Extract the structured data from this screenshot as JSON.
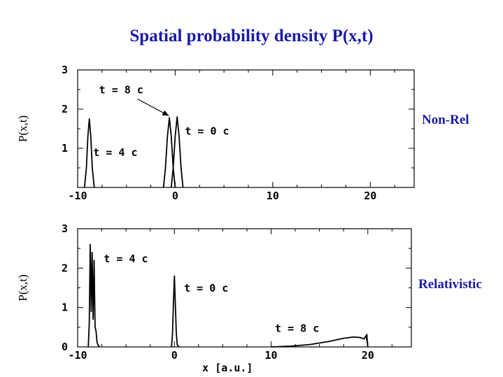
{
  "title": "Spatial probability density P(x,t)",
  "side_labels": {
    "top": "Non-Rel",
    "bottom": "Relativistic"
  },
  "colors": {
    "title": "#1a1aa6",
    "curves": "#000000",
    "axes": "#000000"
  },
  "chart_data": [
    {
      "type": "line",
      "name": "Non-Rel",
      "ylabel": "P(x,t)",
      "xlim": [
        -10,
        24.5
      ],
      "ylim": [
        0,
        3
      ],
      "x_ticks": [
        -10,
        0,
        10,
        20
      ],
      "x_tick_labels": [
        "-10",
        "0",
        "10",
        "20"
      ],
      "y_ticks": [
        1,
        2,
        3
      ],
      "y_tick_labels": [
        "1",
        "2",
        "3"
      ],
      "series": [
        {
          "x": [
            -9.3,
            -9.1,
            -8.95,
            -8.8,
            -8.65,
            -8.5,
            -8.3
          ],
          "y": [
            0,
            0.5,
            1.3,
            1.75,
            1.3,
            0.5,
            0
          ]
        },
        {
          "x": [
            -1.2,
            -1.0,
            -0.8,
            -0.6,
            -0.4,
            -0.2,
            0.0
          ],
          "y": [
            0,
            0.5,
            1.3,
            1.78,
            1.3,
            0.5,
            0
          ]
        },
        {
          "x": [
            -0.4,
            -0.2,
            0.0,
            0.2,
            0.4,
            0.6,
            0.8
          ],
          "y": [
            0,
            0.5,
            1.3,
            1.8,
            1.3,
            0.5,
            0
          ]
        }
      ],
      "annotations": [
        {
          "text": "t = 8 c",
          "x": -7.8,
          "y": 2.4
        },
        {
          "text": "t = 0 c",
          "x": 1.0,
          "y": 1.35
        },
        {
          "text": "t = 4 c",
          "x": -8.4,
          "y": 0.8
        }
      ]
    },
    {
      "type": "line",
      "name": "Relativistic",
      "ylabel": "P(x,t)",
      "xlabel": "x  [a.u.]",
      "xlim": [
        -10,
        24.5
      ],
      "ylim": [
        0,
        3
      ],
      "x_ticks": [
        -10,
        0,
        10,
        20
      ],
      "x_tick_labels": [
        "-10",
        "0",
        "10",
        "20"
      ],
      "y_ticks": [
        0,
        1,
        2,
        3
      ],
      "y_tick_labels": [
        "0",
        "1",
        "2",
        "3"
      ],
      "series": [
        {
          "x": [
            -8.9,
            -8.8,
            -8.7,
            -8.6,
            -8.5,
            -8.4,
            -8.3,
            -8.2,
            -8.1,
            -8.0,
            -7.9,
            -7.75
          ],
          "y": [
            0,
            0.6,
            2.6,
            0.9,
            2.4,
            0.7,
            2.2,
            0.5,
            0.4,
            0.12,
            0.05,
            0
          ]
        },
        {
          "x": [
            -0.3,
            -0.2,
            -0.1,
            0.0,
            0.1,
            0.2,
            0.3,
            0.5
          ],
          "y": [
            0,
            0.3,
            1.1,
            1.8,
            1.1,
            0.35,
            0.05,
            0
          ]
        },
        {
          "x": [
            10.0,
            12.0,
            14.0,
            16.0,
            17.5,
            18.5,
            19.2,
            19.6,
            19.8,
            19.9,
            19.9,
            19.95,
            20.0
          ],
          "y": [
            0.0,
            0.02,
            0.06,
            0.14,
            0.22,
            0.25,
            0.24,
            0.2,
            0.28,
            0.16,
            0.32,
            0.1,
            0.0
          ]
        }
      ],
      "annotations": [
        {
          "text": "t = 4 c",
          "x": -7.3,
          "y": 2.15
        },
        {
          "text": "t = 0 c",
          "x": 1.0,
          "y": 1.4
        },
        {
          "text": "t = 8 c",
          "x": 10.4,
          "y": 0.38
        }
      ]
    }
  ]
}
